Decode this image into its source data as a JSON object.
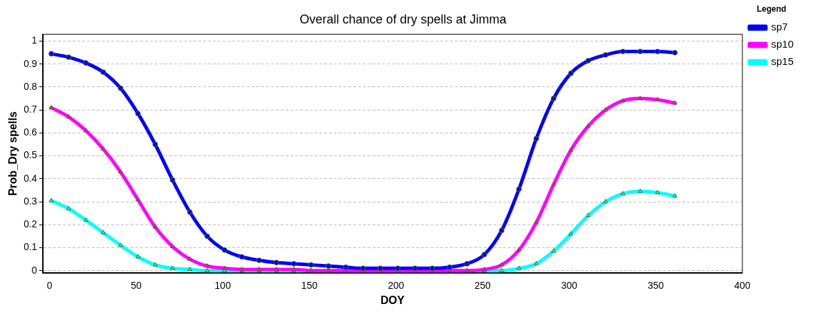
{
  "chart_data": {
    "type": "line",
    "title": "Overall chance of dry spells at Jimma",
    "xlabel": "DOY",
    "ylabel": "Prob_Dry spells",
    "legend_title": "Legend",
    "legend": "right",
    "x": [
      1,
      11,
      21,
      31,
      41,
      51,
      61,
      71,
      81,
      91,
      101,
      111,
      121,
      131,
      141,
      151,
      161,
      171,
      181,
      191,
      201,
      211,
      221,
      231,
      241,
      251,
      261,
      271,
      281,
      291,
      301,
      311,
      321,
      331,
      341,
      351,
      361
    ],
    "series": [
      {
        "name": "sp7",
        "color": "#0000ff",
        "marker": "circle",
        "values": [
          0.945,
          0.93,
          0.905,
          0.865,
          0.795,
          0.685,
          0.55,
          0.395,
          0.255,
          0.15,
          0.09,
          0.06,
          0.045,
          0.035,
          0.03,
          0.025,
          0.02,
          0.015,
          0.01,
          0.01,
          0.01,
          0.01,
          0.01,
          0.015,
          0.03,
          0.07,
          0.175,
          0.355,
          0.575,
          0.75,
          0.86,
          0.915,
          0.94,
          0.955,
          0.955,
          0.955,
          0.95
        ]
      },
      {
        "name": "sp10",
        "color": "#ff00ff",
        "marker": "triangle",
        "values": [
          0.71,
          0.67,
          0.61,
          0.53,
          0.43,
          0.31,
          0.19,
          0.105,
          0.05,
          0.02,
          0.01,
          0.005,
          0.005,
          0.005,
          0.005,
          0,
          0,
          0,
          0,
          0,
          0,
          0,
          0,
          0,
          0,
          0.005,
          0.025,
          0.09,
          0.21,
          0.375,
          0.525,
          0.63,
          0.7,
          0.74,
          0.75,
          0.745,
          0.73
        ]
      },
      {
        "name": "sp15",
        "color": "#00ffff",
        "marker": "triangle",
        "values": [
          0.305,
          0.27,
          0.22,
          0.165,
          0.11,
          0.06,
          0.025,
          0.01,
          0.005,
          0,
          0,
          0,
          0,
          0,
          0,
          0,
          0,
          0,
          0,
          0,
          0,
          0,
          0,
          0,
          0,
          0,
          0,
          0.01,
          0.03,
          0.085,
          0.16,
          0.24,
          0.3,
          0.335,
          0.345,
          0.34,
          0.325
        ]
      }
    ],
    "xlim": [
      -4,
      400
    ],
    "xticks": [
      0,
      50,
      100,
      150,
      200,
      250,
      300,
      350,
      400
    ],
    "ylim": [
      -0.01,
      1.03
    ],
    "yticks": [
      0,
      0.1,
      0.2,
      0.3,
      0.4,
      0.5,
      0.6,
      0.7,
      0.8,
      0.9,
      1
    ],
    "grid": "y",
    "line_style": "solid"
  }
}
